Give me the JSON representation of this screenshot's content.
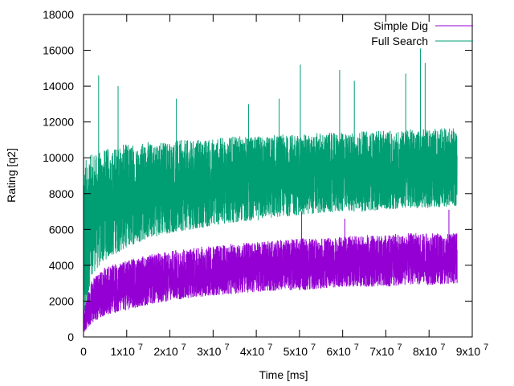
{
  "chart_data": {
    "type": "line",
    "title": "",
    "xlabel": "Time [ms]",
    "ylabel": "Rating [q2]",
    "xlim": [
      0,
      90000000
    ],
    "ylim": [
      0,
      18000
    ],
    "x_tick_values": [
      0,
      10000000,
      20000000,
      30000000,
      40000000,
      50000000,
      60000000,
      70000000,
      80000000,
      90000000
    ],
    "x_tick_labels": [
      {
        "base": "0",
        "exp": ""
      },
      {
        "base": "1x10",
        "exp": "7"
      },
      {
        "base": "2x10",
        "exp": "7"
      },
      {
        "base": "3x10",
        "exp": "7"
      },
      {
        "base": "4x10",
        "exp": "7"
      },
      {
        "base": "5x10",
        "exp": "7"
      },
      {
        "base": "6x10",
        "exp": "7"
      },
      {
        "base": "7x10",
        "exp": "7"
      },
      {
        "base": "8x10",
        "exp": "7"
      },
      {
        "base": "9x10",
        "exp": "7"
      }
    ],
    "y_ticks": [
      0,
      2000,
      4000,
      6000,
      8000,
      10000,
      12000,
      14000,
      16000,
      18000
    ],
    "grid": false,
    "legend_position": "top-right",
    "series": [
      {
        "name": "Simple Dig",
        "color": "#9400d3",
        "x": [
          0,
          2000000,
          5000000,
          10000000,
          15000000,
          20000000,
          25000000,
          30000000,
          35000000,
          40000000,
          45000000,
          50000000,
          55000000,
          60000000,
          65000000,
          70000000,
          75000000,
          80000000,
          86500000
        ],
        "lower": [
          200,
          800,
          1200,
          1500,
          1800,
          2000,
          2200,
          2300,
          2400,
          2500,
          2600,
          2600,
          2700,
          2800,
          2800,
          2800,
          2900,
          2900,
          3000
        ],
        "upper": [
          1500,
          3200,
          3900,
          4300,
          4600,
          4800,
          5000,
          5100,
          5200,
          5300,
          5400,
          5500,
          5500,
          5600,
          5700,
          5700,
          5800,
          5800,
          5800
        ],
        "peak_x": [
          50500000,
          60500000,
          84600000
        ],
        "peak_y": [
          7000,
          6600,
          7100
        ]
      },
      {
        "name": "Full Search",
        "color": "#009e73",
        "x": [
          0,
          2000000,
          5000000,
          10000000,
          15000000,
          20000000,
          25000000,
          30000000,
          35000000,
          40000000,
          45000000,
          50000000,
          55000000,
          60000000,
          65000000,
          70000000,
          75000000,
          80000000,
          86500000
        ],
        "lower": [
          200,
          3500,
          4300,
          5000,
          5500,
          5800,
          6000,
          6200,
          6400,
          6500,
          6700,
          6800,
          6900,
          7000,
          7000,
          7100,
          7200,
          7200,
          7300
        ],
        "upper": [
          10000,
          10200,
          10500,
          10800,
          10900,
          11000,
          11000,
          11100,
          11200,
          11200,
          11300,
          11300,
          11400,
          11400,
          11500,
          11500,
          11600,
          11600,
          11700
        ],
        "peak_x": [
          3500000,
          8000000,
          21500000,
          38200000,
          45300000,
          50200000,
          59300000,
          62700000,
          74600000,
          78000000,
          79100000
        ],
        "peak_y": [
          14600,
          14000,
          13300,
          13000,
          13300,
          15200,
          14900,
          14300,
          14700,
          16100,
          15300
        ]
      }
    ]
  }
}
